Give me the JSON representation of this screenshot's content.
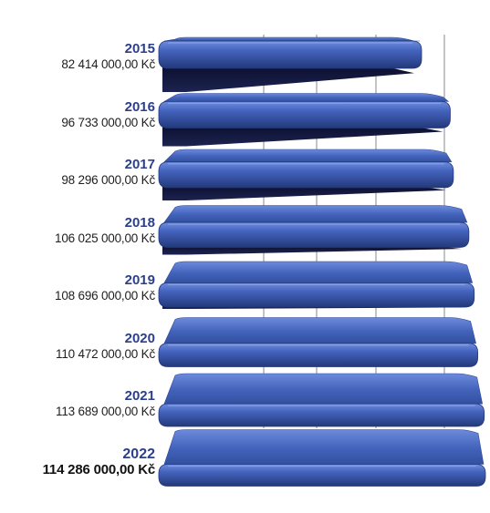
{
  "chart_data": {
    "type": "bar",
    "orientation": "horizontal",
    "style": "3d",
    "categories": [
      "2015",
      "2016",
      "2017",
      "2018",
      "2019",
      "2020",
      "2021",
      "2022"
    ],
    "values": [
      82414000,
      96733000,
      98296000,
      106025000,
      108696000,
      110472000,
      113689000,
      114286000
    ],
    "value_labels": [
      "82 414 000,00 Kč",
      "96 733 000,00 Kč",
      "98 296 000,00 Kč",
      "106 025 000,00 Kč",
      "108 696 000,00 Kč",
      "110 472 000,00 Kč",
      "113 689 000,00 Kč",
      "114 286 000,00 Kč"
    ],
    "highlighted_category": "2022",
    "title": "",
    "xlabel": "",
    "ylabel": "",
    "grid": true,
    "legend": "none",
    "colors": {
      "bar_top": "#4a6cc6",
      "bar_face": "#3553a8",
      "bar_shadow": "#10153a",
      "grid": "#b0b0b0",
      "year_text": "#2b3f8c"
    }
  }
}
